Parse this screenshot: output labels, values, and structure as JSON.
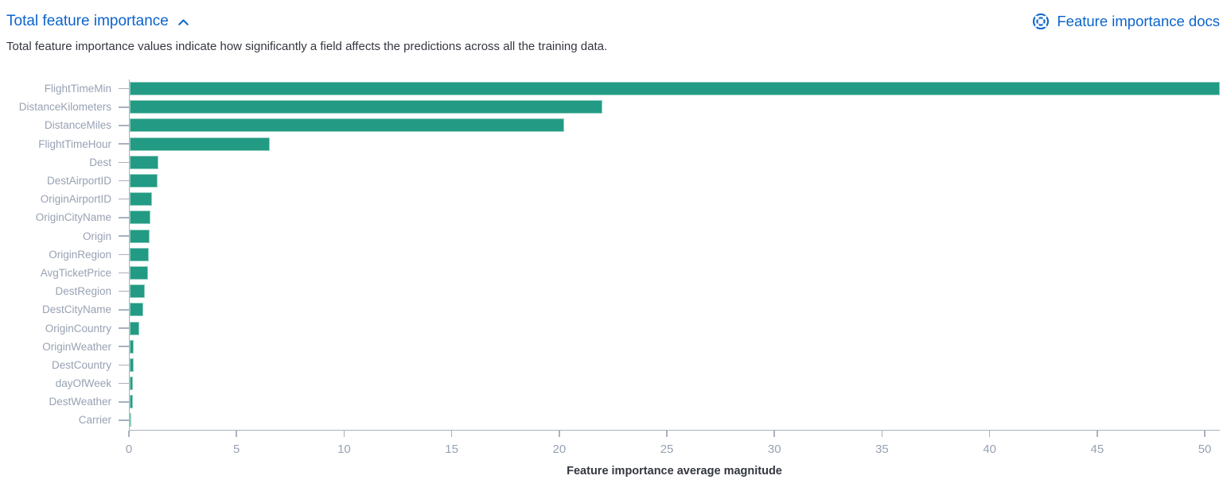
{
  "header": {
    "title": "Total feature importance",
    "collapse_icon": "chevron-up-icon",
    "docs_link_label": "Feature importance docs",
    "docs_icon": "documentation-life-ring-icon",
    "link_color": "#0b64cc"
  },
  "description": "Total feature importance values indicate how significantly a field affects the predictions across all the training data.",
  "chart_data": {
    "type": "bar",
    "orientation": "horizontal",
    "title": "",
    "xlabel": "Feature importance average magnitude",
    "ylabel": "",
    "xlim": [
      0,
      50.7
    ],
    "xticks": [
      0,
      5,
      10,
      15,
      20,
      25,
      30,
      35,
      40,
      45,
      50
    ],
    "grid": false,
    "legend": "none",
    "bar_color": "#239a84",
    "axis_color": "#a8b1c0",
    "tick_text_color": "#98a2b3",
    "categories": [
      "FlightTimeMin",
      "DistanceKilometers",
      "DistanceMiles",
      "FlightTimeHour",
      "Dest",
      "DestAirportID",
      "OriginAirportID",
      "OriginCityName",
      "Origin",
      "OriginRegion",
      "AvgTicketPrice",
      "DestRegion",
      "DestCityName",
      "OriginCountry",
      "OriginWeather",
      "DestCountry",
      "dayOfWeek",
      "DestWeather",
      "Carrier"
    ],
    "values": [
      50.7,
      22.0,
      20.2,
      6.5,
      1.32,
      1.28,
      1.05,
      0.98,
      0.91,
      0.88,
      0.86,
      0.72,
      0.62,
      0.43,
      0.18,
      0.17,
      0.14,
      0.13,
      0.04
    ]
  }
}
